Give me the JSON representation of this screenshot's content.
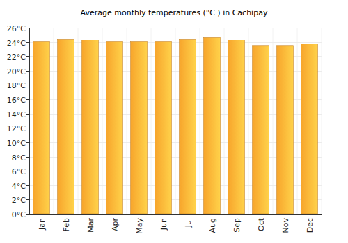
{
  "chart_data": {
    "type": "bar",
    "title": "Average monthly temperatures (°C ) in Cachipay",
    "categories": [
      "Jan",
      "Feb",
      "Mar",
      "Apr",
      "May",
      "Jun",
      "Jul",
      "Aug",
      "Sep",
      "Oct",
      "Nov",
      "Dec"
    ],
    "values": [
      24.1,
      24.4,
      24.3,
      24.1,
      24.1,
      24.1,
      24.4,
      24.6,
      24.3,
      23.5,
      23.5,
      23.7
    ],
    "color": "#f7a52c",
    "ylim": [
      0,
      26
    ],
    "yticks": [
      {
        "value": 0,
        "label": "0°C"
      },
      {
        "value": 2,
        "label": "2°C"
      },
      {
        "value": 4,
        "label": "4°C"
      },
      {
        "value": 6,
        "label": "6°C"
      },
      {
        "value": 8,
        "label": "8°C"
      },
      {
        "value": 10,
        "label": "10°C"
      },
      {
        "value": 12,
        "label": "12°C"
      },
      {
        "value": 14,
        "label": "14°C"
      },
      {
        "value": 16,
        "label": "16°C"
      },
      {
        "value": 18,
        "label": "18°C"
      },
      {
        "value": 20,
        "label": "20°C"
      },
      {
        "value": 22,
        "label": "22°C"
      },
      {
        "value": 24,
        "label": "24°C"
      },
      {
        "value": 26,
        "label": "26°C"
      }
    ],
    "grid": true
  }
}
